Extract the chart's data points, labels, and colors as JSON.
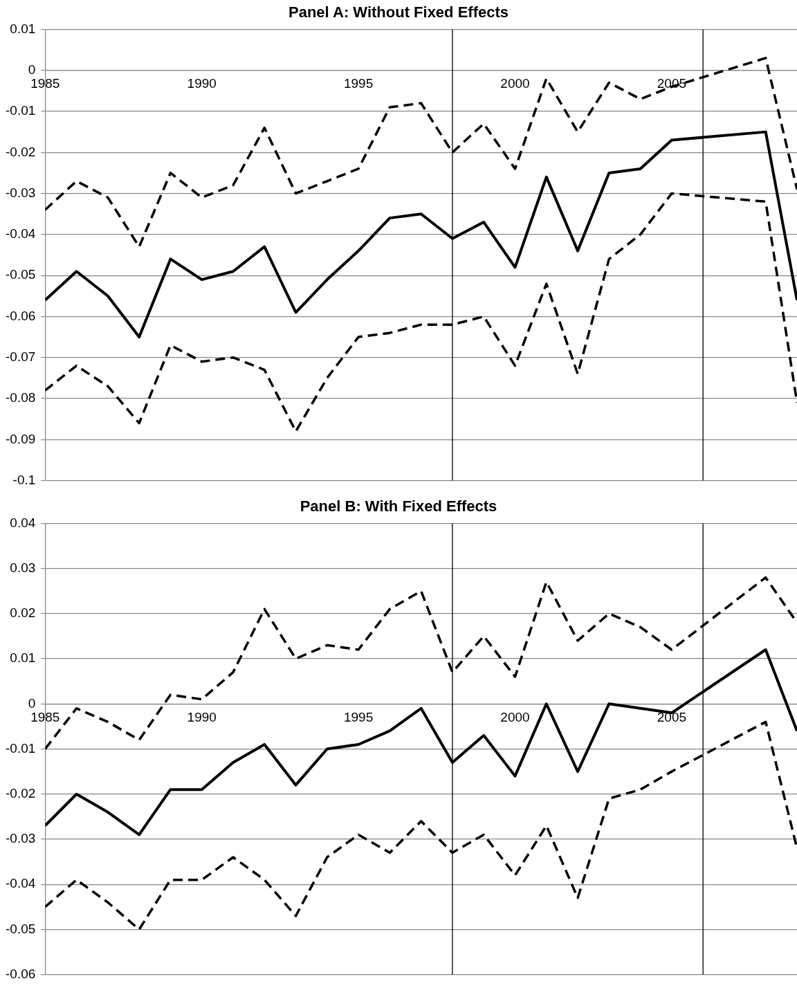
{
  "chart_data": [
    {
      "type": "line",
      "title": "Panel A: Without Fixed Effects",
      "x": [
        1985,
        1986,
        1987,
        1988,
        1989,
        1990,
        1991,
        1992,
        1993,
        1994,
        1995,
        1996,
        1997,
        1998,
        1999,
        2000,
        2001,
        2002,
        2003,
        2004,
        2005,
        2008,
        2009
      ],
      "series": [
        {
          "color": "#000000",
          "line_style": "dashed",
          "values": [
            -0.034,
            -0.027,
            -0.031,
            -0.043,
            -0.025,
            -0.031,
            -0.028,
            -0.014,
            -0.03,
            -0.027,
            -0.024,
            -0.009,
            -0.008,
            -0.02,
            -0.013,
            -0.024,
            -0.002,
            -0.015,
            -0.003,
            -0.007,
            -0.004,
            0.003,
            -0.029
          ]
        },
        {
          "color": "#000000",
          "line_style": "solid",
          "values": [
            -0.056,
            -0.049,
            -0.055,
            -0.065,
            -0.046,
            -0.051,
            -0.049,
            -0.043,
            -0.059,
            -0.051,
            -0.044,
            -0.036,
            -0.035,
            -0.041,
            -0.037,
            -0.048,
            -0.026,
            -0.044,
            -0.025,
            -0.024,
            -0.017,
            -0.015,
            -0.056
          ]
        },
        {
          "color": "#000000",
          "line_style": "dashed",
          "values": [
            -0.078,
            -0.072,
            -0.077,
            -0.086,
            -0.067,
            -0.071,
            -0.07,
            -0.073,
            -0.088,
            -0.075,
            -0.065,
            -0.064,
            -0.062,
            -0.062,
            -0.06,
            -0.072,
            -0.052,
            -0.074,
            -0.046,
            -0.04,
            -0.03,
            -0.032,
            -0.081
          ]
        }
      ],
      "xlim": [
        1985,
        2009
      ],
      "xticks": [
        1985,
        1990,
        1995,
        2000,
        2005
      ],
      "ylim": [
        -0.1,
        0.01
      ],
      "yticks": [
        -0.1,
        -0.09,
        -0.08,
        -0.07,
        -0.06,
        -0.05,
        -0.04,
        -0.03,
        -0.02,
        -0.01,
        0,
        0.01
      ],
      "ref_lines": [
        {
          "axis": "x",
          "value": 1998,
          "color": "#000000"
        },
        {
          "axis": "x",
          "value": 2006,
          "color": "#000000"
        }
      ],
      "grid": "y",
      "legend": false,
      "marker": "none"
    },
    {
      "type": "line",
      "title": "Panel B: With Fixed Effects",
      "x": [
        1985,
        1986,
        1987,
        1988,
        1989,
        1990,
        1991,
        1992,
        1993,
        1994,
        1995,
        1996,
        1997,
        1998,
        1999,
        2000,
        2001,
        2002,
        2003,
        2004,
        2005,
        2008,
        2009
      ],
      "series": [
        {
          "color": "#000000",
          "line_style": "dashed",
          "values": [
            -0.01,
            -0.001,
            -0.004,
            -0.008,
            0.002,
            0.001,
            0.007,
            0.021,
            0.01,
            0.013,
            0.012,
            0.021,
            0.025,
            0.007,
            0.015,
            0.006,
            0.027,
            0.014,
            0.02,
            0.017,
            0.012,
            0.028,
            0.018
          ]
        },
        {
          "color": "#000000",
          "line_style": "solid",
          "values": [
            -0.027,
            -0.02,
            -0.024,
            -0.029,
            -0.019,
            -0.019,
            -0.013,
            -0.009,
            -0.018,
            -0.01,
            -0.009,
            -0.006,
            -0.001,
            -0.013,
            -0.007,
            -0.016,
            0.0,
            -0.015,
            0.0,
            -0.001,
            -0.002,
            0.012,
            -0.006
          ]
        },
        {
          "color": "#000000",
          "line_style": "dashed",
          "values": [
            -0.045,
            -0.039,
            -0.044,
            -0.05,
            -0.039,
            -0.039,
            -0.034,
            -0.039,
            -0.047,
            -0.034,
            -0.029,
            -0.033,
            -0.026,
            -0.033,
            -0.029,
            -0.038,
            -0.027,
            -0.043,
            -0.021,
            -0.019,
            -0.015,
            -0.004,
            -0.032
          ]
        }
      ],
      "xlim": [
        1985,
        2009
      ],
      "xticks": [
        1985,
        1990,
        1995,
        2000,
        2005
      ],
      "ylim": [
        -0.06,
        0.04
      ],
      "yticks": [
        -0.06,
        -0.05,
        -0.04,
        -0.03,
        -0.02,
        -0.01,
        0,
        0.01,
        0.02,
        0.03,
        0.04
      ],
      "ref_lines": [
        {
          "axis": "x",
          "value": 1998,
          "color": "#000000"
        },
        {
          "axis": "x",
          "value": 2006,
          "color": "#000000"
        }
      ],
      "grid": "y",
      "legend": false,
      "marker": "none"
    }
  ]
}
